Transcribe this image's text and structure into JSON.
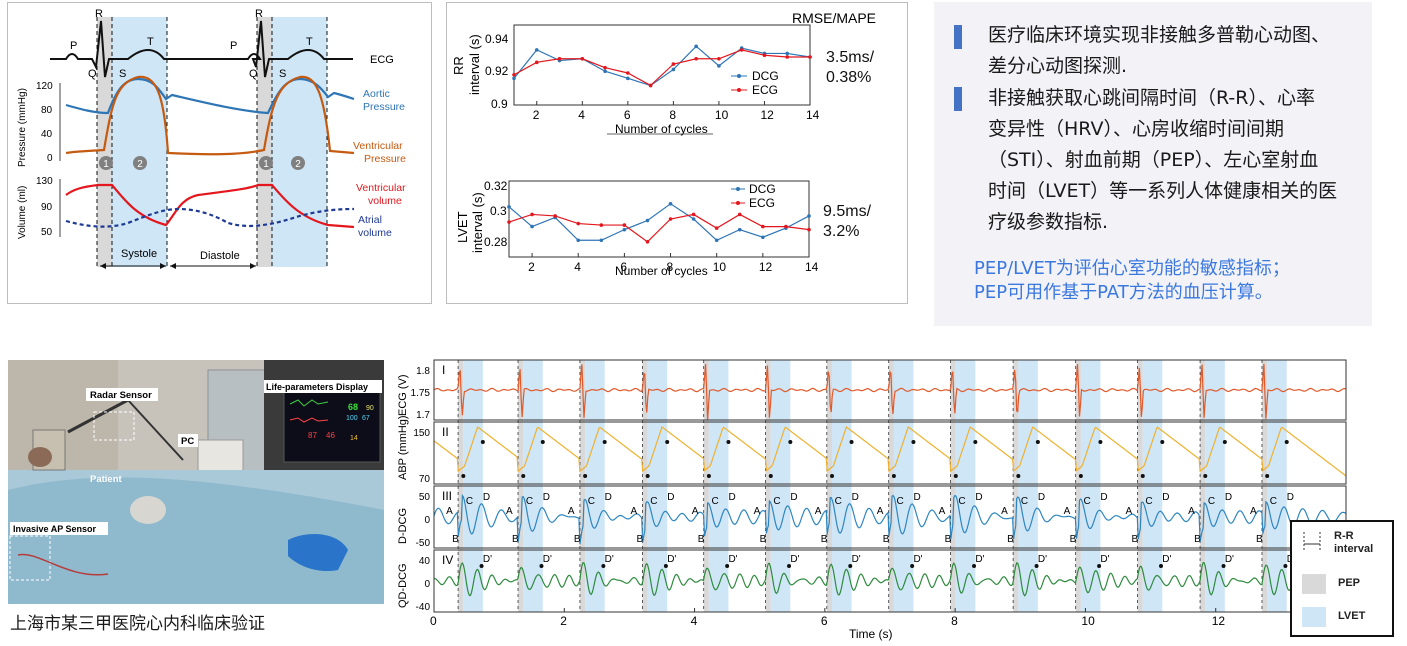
{
  "cardio": {
    "wave_labels": {
      "P": "P",
      "R": "R",
      "Q": "Q",
      "S": "S",
      "T": "T"
    },
    "ecg_label": "ECG",
    "pressure_axis": "Pressure (mmHg)",
    "pressure_ticks": [
      "120",
      "80",
      "40",
      "0"
    ],
    "volume_axis": "Volume (ml)",
    "volume_ticks": [
      "130",
      "90",
      "50"
    ],
    "aortic_pressure": "Aortic\nPressure",
    "ventricular_pressure": "Ventricular\nPressure",
    "ventricular_volume": "Ventricular\nvolume",
    "atrial_volume": "Atrial\nvolume",
    "phase1": "1",
    "phase2": "2",
    "systole": "Systole",
    "diastole": "Diastole",
    "colors": {
      "aortic": "#2e75b6",
      "ventricular_pressure": "#c55a11",
      "ventricular_volume": "#e3171d",
      "atrial_volume": "#1f3a93",
      "systole_fill": "#cfe6f6",
      "pep_fill": "#d9d9d9"
    }
  },
  "rr_chart": {
    "corner_label": "RMSE/MAPE",
    "ylabel_line1": "RR",
    "ylabel_line2": "interval (s)",
    "xlabel": "Number of cycles",
    "yticks": [
      "0.94",
      "0.92",
      "0.9"
    ],
    "xticks": [
      "2",
      "4",
      "6",
      "8",
      "10",
      "12",
      "14"
    ],
    "legend": [
      "DCG",
      "ECG"
    ],
    "metric": "3.5ms/\n0.38%"
  },
  "lvet_chart": {
    "ylabel_line1": "LVET",
    "ylabel_line2": "interval (s)",
    "xlabel": "Number of cycles",
    "yticks": [
      "0.32",
      "0.3",
      "0.28"
    ],
    "xticks": [
      "2",
      "4",
      "6",
      "8",
      "10",
      "12",
      "14"
    ],
    "legend": [
      "DCG",
      "ECG"
    ],
    "metric": "9.5ms/\n3.2%"
  },
  "chart_data": [
    {
      "type": "line",
      "xlabel": "Number of cycles",
      "ylabel": "RR interval (s)",
      "x": [
        1,
        2,
        3,
        4,
        5,
        6,
        7,
        8,
        9,
        10,
        11,
        12,
        13,
        14
      ],
      "ylim": [
        0.9,
        0.945
      ],
      "xlim": [
        1,
        14
      ],
      "series": [
        {
          "name": "DCG",
          "color": "#2e75b6",
          "values": [
            0.915,
            0.931,
            0.925,
            0.926,
            0.919,
            0.915,
            0.911,
            0.92,
            0.933,
            0.922,
            0.932,
            0.929,
            0.929,
            0.927
          ]
        },
        {
          "name": "ECG",
          "color": "#e3171d",
          "values": [
            0.917,
            0.924,
            0.926,
            0.926,
            0.921,
            0.918,
            0.911,
            0.923,
            0.926,
            0.926,
            0.931,
            0.928,
            0.927,
            0.927
          ]
        }
      ]
    },
    {
      "type": "line",
      "xlabel": "Number of cycles",
      "ylabel": "LVET interval (s)",
      "x": [
        1,
        2,
        3,
        4,
        5,
        6,
        7,
        8,
        9,
        10,
        11,
        12,
        13,
        14
      ],
      "ylim": [
        0.275,
        0.325
      ],
      "xlim": [
        1,
        14
      ],
      "series": [
        {
          "name": "DCG",
          "color": "#2e75b6",
          "values": [
            0.308,
            0.295,
            0.301,
            0.286,
            0.286,
            0.293,
            0.299,
            0.31,
            0.3,
            0.286,
            0.293,
            0.288,
            0.294,
            0.302
          ]
        },
        {
          "name": "ECG",
          "color": "#e3171d",
          "values": [
            0.298,
            0.303,
            0.302,
            0.297,
            0.296,
            0.296,
            0.285,
            0.3,
            0.303,
            0.294,
            0.303,
            0.295,
            0.295,
            0.293
          ]
        }
      ]
    },
    {
      "type": "line",
      "xlabel": "Time (s)",
      "xlim": [
        0,
        14
      ],
      "xticks": [
        "0",
        "2",
        "4",
        "6",
        "8",
        "10",
        "12"
      ],
      "beat_times": [
        0.37,
        1.29,
        2.24,
        3.2,
        4.14,
        5.09,
        6.03,
        6.98,
        7.93,
        8.89,
        9.85,
        10.8,
        11.76,
        12.71
      ],
      "series": [
        {
          "name": "ECG",
          "label": "I",
          "ylabel": "ECG (V)",
          "yticks": [
            "1.8",
            "1.75",
            "1.7"
          ],
          "color": "#e05a2b"
        },
        {
          "name": "ABP",
          "label": "II",
          "ylabel": "ABP (mmHg)",
          "yticks": [
            "150",
            "70"
          ],
          "color": "#efb12d"
        },
        {
          "name": "D-DCG",
          "label": "III",
          "ylabel": "D-DCG",
          "yticks": [
            "50",
            "0",
            "-50"
          ],
          "color": "#2e86c1"
        },
        {
          "name": "QD-DCG",
          "label": "IV",
          "ylabel": "QD-DCG",
          "yticks": [
            "40",
            "0",
            "-40"
          ],
          "color": "#2e8b3e"
        }
      ]
    }
  ],
  "signals": {
    "xlabel": "Time (s)",
    "point_labels": {
      "A": "A",
      "B": "B",
      "C": "C",
      "D": "D",
      "Dp": "D'"
    }
  },
  "legend": {
    "rr_label": "R-R\ninterval",
    "pep": "PEP",
    "lvet": "LVET"
  },
  "bullets": [
    "医疗临床环境实现非接触多普勒心动图、\n差分心动图探测.",
    "非接触获取心跳间隔时间（R-R）、心率\n变异性（HRV）、心房收缩时间间期\n（STI）、射血前期（PEP）、左心室射血\n时间（LVET）等一系列人体健康相关的医\n疗级参数指标."
  ],
  "note": "PEP/LVET为评估心室功能的敏感指标；\nPEP可用作基于PAT方法的血压计算。",
  "photo": {
    "labels": {
      "radar": "Radar Sensor",
      "display": "Life-parameters Display",
      "pc": "PC",
      "patient": "Patient",
      "invasive": "Invasive AP Sensor"
    },
    "monitor_values": [
      "68",
      "100",
      "90",
      "67",
      "14",
      "87",
      "46"
    ],
    "caption": "上海市某三甲医院心内科临床验证"
  }
}
